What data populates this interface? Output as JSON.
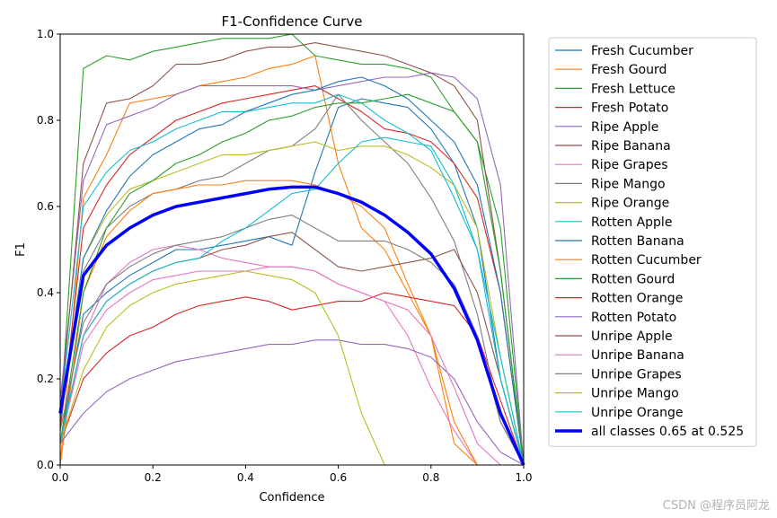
{
  "watermark": "CSDN @程序员阿龙",
  "chart_data": {
    "type": "line",
    "title": "F1-Confidence Curve",
    "xlabel": "Confidence",
    "ylabel": "F1",
    "xlim": [
      0,
      1
    ],
    "ylim": [
      0,
      1
    ],
    "xticks": [
      "0.0",
      "0.2",
      "0.4",
      "0.6",
      "0.8",
      "1.0"
    ],
    "yticks": [
      "0.0",
      "0.2",
      "0.4",
      "0.6",
      "0.8",
      "1.0"
    ],
    "grid": false,
    "legend": "right-outside",
    "x": [
      0,
      0.05,
      0.1,
      0.15,
      0.2,
      0.25,
      0.3,
      0.35,
      0.4,
      0.45,
      0.5,
      0.55,
      0.6,
      0.65,
      0.7,
      0.75,
      0.8,
      0.85,
      0.9,
      0.95,
      1.0
    ],
    "series": [
      {
        "name": "Fresh Cucumber",
        "color": "#1f77b4",
        "values": [
          0.05,
          0.35,
          0.4,
          0.44,
          0.47,
          0.5,
          0.5,
          0.51,
          0.52,
          0.53,
          0.51,
          0.68,
          0.83,
          0.85,
          0.84,
          0.83,
          0.78,
          0.7,
          0.55,
          0.2,
          0.0
        ]
      },
      {
        "name": "Fresh Gourd",
        "color": "#ff7f0e",
        "values": [
          0.0,
          0.62,
          0.72,
          0.84,
          0.85,
          0.86,
          0.88,
          0.89,
          0.9,
          0.92,
          0.93,
          0.95,
          0.7,
          0.55,
          0.5,
          0.4,
          0.3,
          0.05,
          0.0,
          0.0,
          0.0
        ]
      },
      {
        "name": "Fresh Lettuce",
        "color": "#2ca02c",
        "values": [
          0.1,
          0.92,
          0.95,
          0.94,
          0.96,
          0.97,
          0.98,
          0.99,
          0.99,
          0.99,
          1.0,
          0.95,
          0.94,
          0.93,
          0.93,
          0.92,
          0.9,
          0.82,
          0.75,
          0.55,
          0.0
        ]
      },
      {
        "name": "Fresh Potato",
        "color": "#d62728",
        "values": [
          0.08,
          0.55,
          0.65,
          0.72,
          0.76,
          0.8,
          0.82,
          0.84,
          0.85,
          0.86,
          0.87,
          0.88,
          0.85,
          0.82,
          0.78,
          0.77,
          0.75,
          0.7,
          0.62,
          0.4,
          0.0
        ]
      },
      {
        "name": "Ripe Apple",
        "color": "#9467bd",
        "values": [
          0.15,
          0.66,
          0.79,
          0.81,
          0.83,
          0.86,
          0.88,
          0.88,
          0.88,
          0.88,
          0.88,
          0.87,
          0.88,
          0.89,
          0.9,
          0.9,
          0.91,
          0.9,
          0.85,
          0.65,
          0.0
        ]
      },
      {
        "name": "Ripe Banana",
        "color": "#8c564b",
        "values": [
          0.12,
          0.7,
          0.84,
          0.85,
          0.88,
          0.93,
          0.93,
          0.94,
          0.96,
          0.97,
          0.97,
          0.98,
          0.97,
          0.96,
          0.95,
          0.93,
          0.91,
          0.88,
          0.8,
          0.45,
          0.0
        ]
      },
      {
        "name": "Ripe Grapes",
        "color": "#e377c2",
        "values": [
          0.05,
          0.3,
          0.42,
          0.47,
          0.5,
          0.51,
          0.5,
          0.48,
          0.47,
          0.46,
          0.46,
          0.45,
          0.42,
          0.4,
          0.38,
          0.3,
          0.18,
          0.08,
          0.0,
          0.0,
          0.0
        ]
      },
      {
        "name": "Ripe Mango",
        "color": "#7f7f7f",
        "values": [
          0.1,
          0.45,
          0.55,
          0.6,
          0.63,
          0.64,
          0.66,
          0.67,
          0.7,
          0.73,
          0.74,
          0.78,
          0.86,
          0.8,
          0.75,
          0.7,
          0.62,
          0.52,
          0.35,
          0.1,
          0.0
        ]
      },
      {
        "name": "Ripe Orange",
        "color": "#bcbd22",
        "values": [
          0.1,
          0.48,
          0.58,
          0.64,
          0.66,
          0.68,
          0.7,
          0.72,
          0.72,
          0.73,
          0.74,
          0.75,
          0.73,
          0.74,
          0.74,
          0.72,
          0.69,
          0.65,
          0.55,
          0.25,
          0.0
        ]
      },
      {
        "name": "Rotten Apple",
        "color": "#17becf",
        "values": [
          0.12,
          0.6,
          0.68,
          0.73,
          0.75,
          0.78,
          0.8,
          0.82,
          0.82,
          0.83,
          0.84,
          0.84,
          0.86,
          0.84,
          0.8,
          0.77,
          0.73,
          0.62,
          0.5,
          0.25,
          0.0
        ]
      },
      {
        "name": "Rotten Banana",
        "color": "#1f77b4",
        "values": [
          0.1,
          0.48,
          0.59,
          0.67,
          0.72,
          0.75,
          0.78,
          0.79,
          0.82,
          0.84,
          0.86,
          0.87,
          0.89,
          0.9,
          0.88,
          0.85,
          0.8,
          0.75,
          0.65,
          0.4,
          0.0
        ]
      },
      {
        "name": "Rotten Cucumber",
        "color": "#ff7f0e",
        "values": [
          0.0,
          0.4,
          0.53,
          0.59,
          0.63,
          0.64,
          0.65,
          0.65,
          0.66,
          0.66,
          0.66,
          0.65,
          0.63,
          0.6,
          0.55,
          0.42,
          0.3,
          0.1,
          0.0,
          0.0,
          0.0
        ]
      },
      {
        "name": "Rotten Gourd",
        "color": "#2ca02c",
        "values": [
          0.05,
          0.4,
          0.55,
          0.63,
          0.66,
          0.7,
          0.72,
          0.75,
          0.77,
          0.8,
          0.81,
          0.83,
          0.84,
          0.84,
          0.85,
          0.86,
          0.84,
          0.82,
          0.75,
          0.45,
          0.0
        ]
      },
      {
        "name": "Rotten Orange",
        "color": "#d62728",
        "values": [
          0.05,
          0.2,
          0.26,
          0.3,
          0.32,
          0.35,
          0.37,
          0.38,
          0.39,
          0.38,
          0.36,
          0.37,
          0.38,
          0.38,
          0.4,
          0.39,
          0.38,
          0.37,
          0.3,
          0.15,
          0.0
        ]
      },
      {
        "name": "Rotten Potato",
        "color": "#9467bd",
        "values": [
          0.05,
          0.12,
          0.17,
          0.2,
          0.22,
          0.24,
          0.25,
          0.26,
          0.27,
          0.28,
          0.28,
          0.29,
          0.29,
          0.28,
          0.28,
          0.27,
          0.25,
          0.2,
          0.1,
          0.03,
          0.0
        ]
      },
      {
        "name": "Unripe Apple",
        "color": "#8c564b",
        "values": [
          0.05,
          0.3,
          0.38,
          0.42,
          0.45,
          0.47,
          0.48,
          0.5,
          0.51,
          0.53,
          0.54,
          0.5,
          0.46,
          0.45,
          0.46,
          0.47,
          0.48,
          0.5,
          0.4,
          0.2,
          0.0
        ]
      },
      {
        "name": "Unripe Banana",
        "color": "#e377c2",
        "values": [
          0.05,
          0.28,
          0.36,
          0.4,
          0.43,
          0.44,
          0.45,
          0.45,
          0.45,
          0.46,
          0.46,
          0.45,
          0.42,
          0.4,
          0.38,
          0.36,
          0.3,
          0.18,
          0.05,
          0.0,
          0.0
        ]
      },
      {
        "name": "Unripe Grapes",
        "color": "#7f7f7f",
        "values": [
          0.08,
          0.33,
          0.42,
          0.46,
          0.49,
          0.51,
          0.52,
          0.53,
          0.55,
          0.57,
          0.58,
          0.55,
          0.52,
          0.52,
          0.52,
          0.5,
          0.47,
          0.42,
          0.3,
          0.1,
          0.0
        ]
      },
      {
        "name": "Unripe Mango",
        "color": "#bcbd22",
        "values": [
          0.05,
          0.22,
          0.32,
          0.37,
          0.4,
          0.42,
          0.43,
          0.44,
          0.45,
          0.44,
          0.43,
          0.4,
          0.3,
          0.12,
          0.0,
          0.0,
          0.0,
          0.0,
          0.0,
          0.0,
          0.0
        ]
      },
      {
        "name": "Unripe Orange",
        "color": "#17becf",
        "values": [
          0.05,
          0.3,
          0.38,
          0.42,
          0.45,
          0.47,
          0.48,
          0.52,
          0.55,
          0.59,
          0.63,
          0.64,
          0.7,
          0.75,
          0.76,
          0.75,
          0.74,
          0.65,
          0.5,
          0.2,
          0.0
        ]
      },
      {
        "name": "all classes 0.65 at 0.525",
        "color": "#0000ff",
        "bold": true,
        "values": [
          0.12,
          0.44,
          0.51,
          0.55,
          0.58,
          0.6,
          0.61,
          0.62,
          0.63,
          0.64,
          0.645,
          0.645,
          0.63,
          0.61,
          0.58,
          0.54,
          0.49,
          0.41,
          0.29,
          0.12,
          0.0
        ]
      }
    ]
  }
}
